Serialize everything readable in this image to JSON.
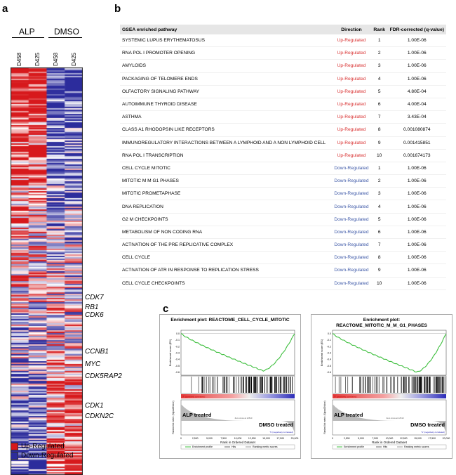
{
  "panels": {
    "a": "a",
    "b": "b",
    "c": "c"
  },
  "heatmap": {
    "groups": [
      "ALP",
      "DMSO"
    ],
    "columns": [
      "D458",
      "D425",
      "D458",
      "D425"
    ],
    "genes": [
      "CDK7",
      "RB1",
      "CDK6",
      "CCNB1",
      "MYC",
      "CDK5RAP2",
      "CDK1",
      "CDKN2C"
    ],
    "colors": {
      "up": "#d7191c",
      "down": "#2c2c9c",
      "mid": "#ffffff"
    }
  },
  "legend": {
    "up": "Up-Regulated",
    "down": "Down-Regulated"
  },
  "table": {
    "headers": [
      "GSEA enriched pathway",
      "Direction",
      "Rank",
      "FDR-corrected (q-value)"
    ],
    "rows": [
      [
        "SYSTEMIC LUPUS ERYTHEMATOSUS",
        "Up-Regulated",
        "1",
        "1.00E-06"
      ],
      [
        "RNA POL I PROMOTER OPENING",
        "Up-Regulated",
        "2",
        "1.00E-06"
      ],
      [
        "AMYLOIDS",
        "Up-Regulated",
        "3",
        "1.00E-06"
      ],
      [
        "PACKAGING OF TELOMERE ENDS",
        "Up-Regulated",
        "4",
        "1.00E-06"
      ],
      [
        "OLFACTORY SIGNALING PATHWAY",
        "Up-Regulated",
        "5",
        "4.80E-04"
      ],
      [
        "AUTOIMMUNE THYROID DISEASE",
        "Up-Regulated",
        "6",
        "4.00E-04"
      ],
      [
        "ASTHMA",
        "Up-Regulated",
        "7",
        "3.43E-04"
      ],
      [
        "CLASS A1 RHODOPSIN LIKE RECEPTORS",
        "Up-Regulated",
        "8",
        "0.001080874"
      ],
      [
        "IMMUNOREGULATORY INTERACTIONS BETWEEN A LYMPHOID AND A NON LYMPHOID CELL",
        "Up-Regulated",
        "9",
        "0.001415851"
      ],
      [
        "RNA POL I TRANSCRIPTION",
        "Up-Regulated",
        "10",
        "0.001674173"
      ],
      [
        "CELL CYCLE MITOTIC",
        "Down-Regulated",
        "1",
        "1.00E-06"
      ],
      [
        "MITOTIC M M G1 PHASES",
        "Down-Regulated",
        "2",
        "1.00E-06"
      ],
      [
        "MITOTIC PROMETAPHASE",
        "Down-Regulated",
        "3",
        "1.00E-06"
      ],
      [
        "DNA REPLICATION",
        "Down-Regulated",
        "4",
        "1.00E-06"
      ],
      [
        "G2 M CHECKPOINTS",
        "Down-Regulated",
        "5",
        "1.00E-06"
      ],
      [
        "METABOLISM OF NON CODING RNA",
        "Down-Regulated",
        "6",
        "1.00E-06"
      ],
      [
        "ACTIVATION OF THE PRE REPLICATIVE COMPLEX",
        "Down-Regulated",
        "7",
        "1.00E-06"
      ],
      [
        "CELL CYCLE",
        "Down-Regulated",
        "8",
        "1.00E-06"
      ],
      [
        "ACTIVATION OF ATR IN RESPONSE TO REPLICATION STRESS",
        "Down-Regulated",
        "9",
        "1.00E-06"
      ],
      [
        "CELL CYCLE CHECKPOINTS",
        "Down-Regulated",
        "10",
        "1.00E-06"
      ]
    ],
    "colors": {
      "up": "#d93030",
      "down": "#3f5aa8"
    }
  },
  "enrichment_plots": [
    {
      "title": "Enrichment plot: REACTOME_CELL_CYCLE_MITOTIC",
      "title_line1": "Enrichment plot: REACTOME_CELL_CYCLE_MITOTIC",
      "title_line2": "",
      "yticks": [
        "0.0",
        "-0.1",
        "-0.2",
        "-0.3",
        "-0.4",
        "-0.5",
        "-0.6"
      ],
      "es_min": -0.58,
      "ylabel": "Enrichment score (ES)",
      "rank_ylabel": "Ranked list metric (Signal2Noise)",
      "pos_label": "'F' (positively correlated)",
      "neg_label": "'S' (negatively correlated)",
      "zero_label": "Zero cross at 12510",
      "left_group": "ALP treated",
      "right_group": "DMSO treated",
      "xlabel": "Rank in Ordered Dataset",
      "xticks": [
        "0",
        "2,500",
        "5,000",
        "7,500",
        "10,000",
        "12,500",
        "15,000",
        "17,500",
        "20,000"
      ],
      "legend": [
        "Enrichment profile",
        "Hits",
        "Ranking metric scores"
      ]
    },
    {
      "title": "Enrichment plot: REACTOME_MITOTIC_M_M_G1_PHASES",
      "title_line1": "Enrichment plot:",
      "title_line2": "REACTOME_MITOTIC_M_M_G1_PHASES",
      "yticks": [
        "0.0",
        "-0.1",
        "-0.2",
        "-0.3",
        "-0.4",
        "-0.5",
        "-0.6"
      ],
      "es_min": -0.6,
      "ylabel": "Enrichment score (ES)",
      "rank_ylabel": "Ranked list metric (Signal2Noise)",
      "pos_label": "'F' (positively correlated)",
      "neg_label": "'S' (negatively correlated)",
      "zero_label": "Zero cross at 12510",
      "left_group": "ALP treated",
      "right_group": "DMSO treated",
      "xlabel": "Rank in Ordered Dataset",
      "xticks": [
        "0",
        "2,500",
        "5,000",
        "7,500",
        "10,000",
        "12,500",
        "15,000",
        "17,500",
        "20,000"
      ],
      "legend": [
        "Enrichment profile",
        "Hits",
        "Ranking metric scores"
      ]
    }
  ]
}
